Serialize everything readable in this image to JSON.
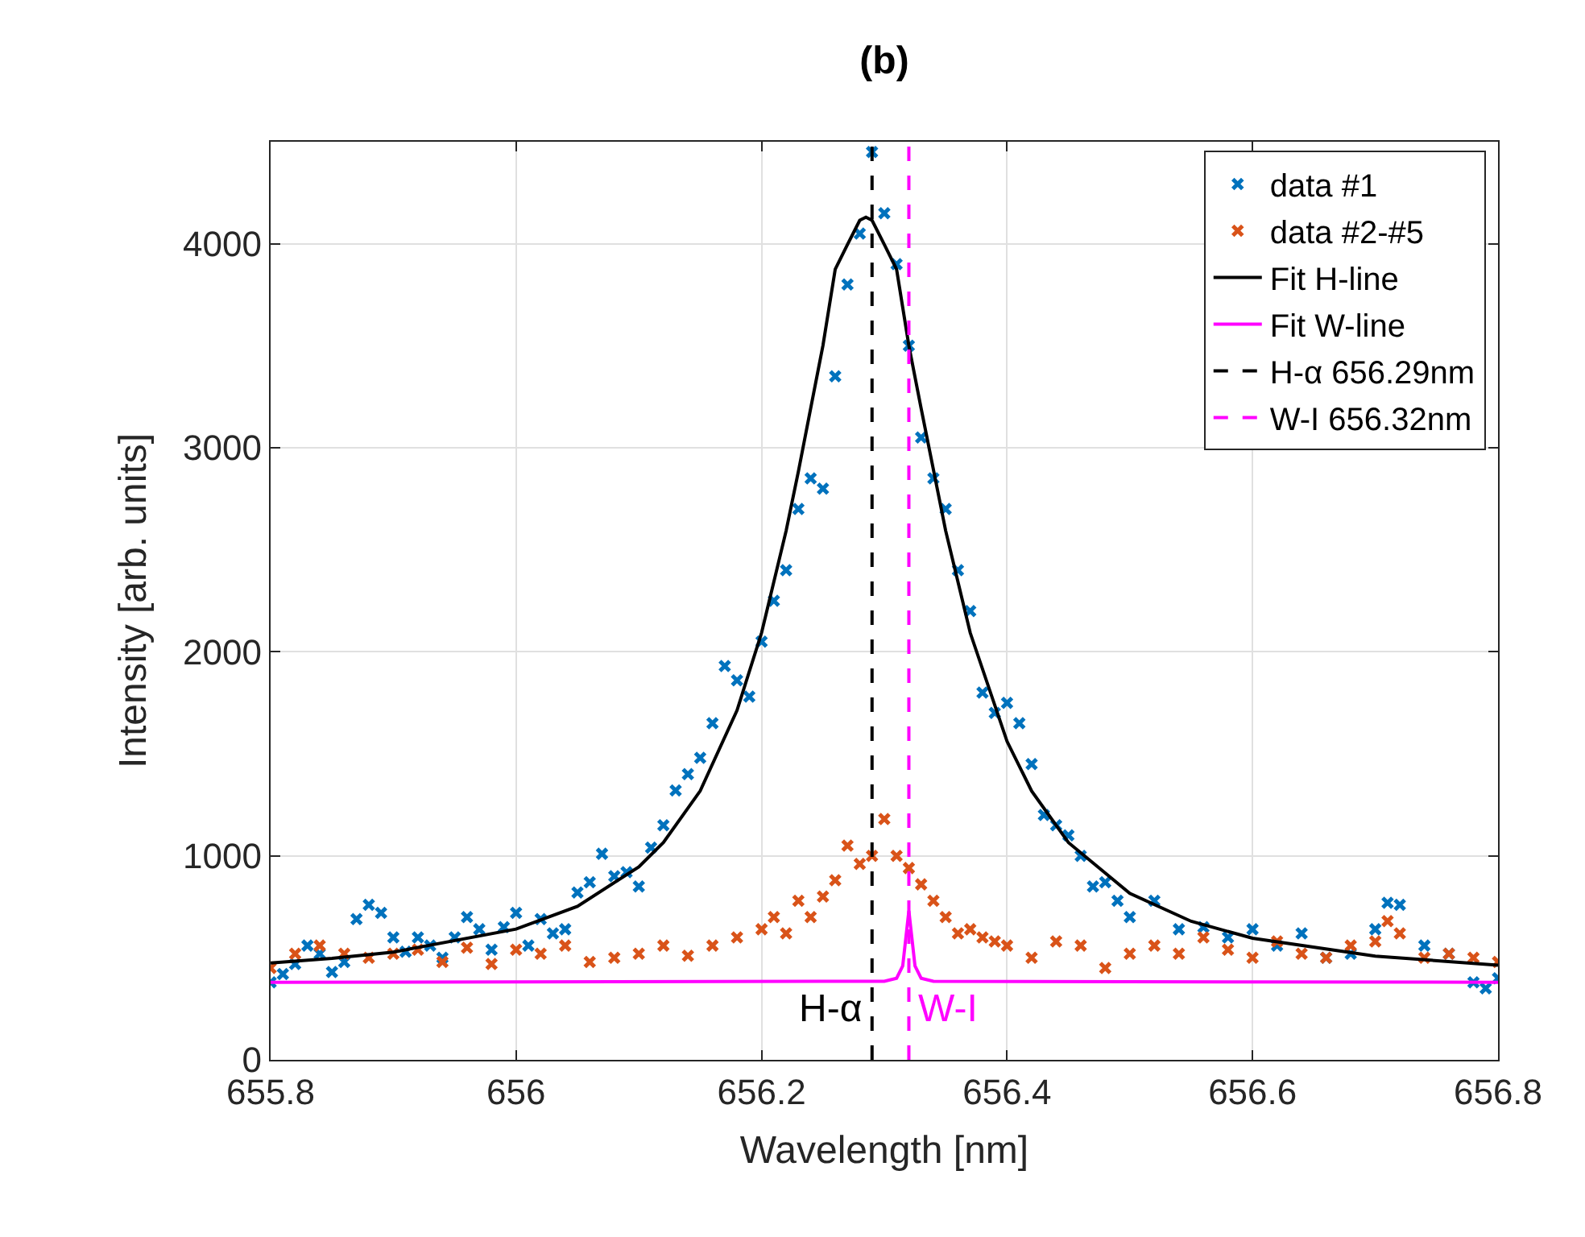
{
  "chart_data": {
    "type": "scatter",
    "title": "(b)",
    "xlabel": "Wavelength [nm]",
    "ylabel": "Intensity [arb. units]",
    "xlim": [
      655.8,
      656.8
    ],
    "xticks": [
      655.8,
      656,
      656.2,
      656.4,
      656.6,
      656.8
    ],
    "ylim": [
      0,
      4500
    ],
    "yticks": [
      0,
      1000,
      2000,
      3000,
      4000
    ],
    "grid": true,
    "legend": "top right",
    "series": [
      {
        "name": "data #1",
        "marker": "cross",
        "color": "#0072bd",
        "x": [
          655.8,
          655.81,
          655.82,
          655.83,
          655.84,
          655.85,
          655.86,
          655.87,
          655.88,
          655.89,
          655.9,
          655.91,
          655.92,
          655.93,
          655.94,
          655.95,
          655.96,
          655.97,
          655.98,
          655.99,
          656.0,
          656.01,
          656.02,
          656.03,
          656.04,
          656.05,
          656.06,
          656.07,
          656.08,
          656.09,
          656.1,
          656.11,
          656.12,
          656.13,
          656.14,
          656.15,
          656.16,
          656.17,
          656.18,
          656.19,
          656.2,
          656.21,
          656.22,
          656.23,
          656.24,
          656.25,
          656.26,
          656.27,
          656.28,
          656.29,
          656.3,
          656.31,
          656.32,
          656.33,
          656.34,
          656.35,
          656.36,
          656.37,
          656.38,
          656.39,
          656.4,
          656.41,
          656.42,
          656.43,
          656.44,
          656.45,
          656.46,
          656.47,
          656.48,
          656.49,
          656.5,
          656.52,
          656.54,
          656.56,
          656.58,
          656.6,
          656.62,
          656.64,
          656.66,
          656.68,
          656.7,
          656.71,
          656.72,
          656.74,
          656.76,
          656.78,
          656.79,
          656.8
        ],
        "values": [
          380,
          420,
          470,
          560,
          520,
          430,
          480,
          690,
          760,
          720,
          600,
          530,
          600,
          560,
          500,
          600,
          700,
          640,
          540,
          650,
          720,
          560,
          690,
          620,
          640,
          820,
          870,
          1010,
          900,
          920,
          850,
          1040,
          1150,
          1320,
          1400,
          1480,
          1650,
          1930,
          1860,
          1780,
          2050,
          2250,
          2400,
          2700,
          2850,
          2800,
          3350,
          3800,
          4050,
          4450,
          4150,
          3900,
          3500,
          3050,
          2850,
          2700,
          2400,
          2200,
          1800,
          1700,
          1750,
          1650,
          1450,
          1200,
          1150,
          1100,
          1000,
          850,
          870,
          780,
          700,
          780,
          640,
          650,
          600,
          640,
          560,
          620,
          500,
          520,
          640,
          770,
          760,
          560,
          520,
          380,
          350,
          400
        ]
      },
      {
        "name": "data #2-#5",
        "marker": "cross",
        "color": "#d95319",
        "x": [
          655.8,
          655.82,
          655.84,
          655.86,
          655.88,
          655.9,
          655.92,
          655.94,
          655.96,
          655.98,
          656.0,
          656.02,
          656.04,
          656.06,
          656.08,
          656.1,
          656.12,
          656.14,
          656.16,
          656.18,
          656.2,
          656.21,
          656.22,
          656.23,
          656.24,
          656.25,
          656.26,
          656.27,
          656.28,
          656.29,
          656.3,
          656.31,
          656.32,
          656.33,
          656.34,
          656.35,
          656.36,
          656.37,
          656.38,
          656.39,
          656.4,
          656.42,
          656.44,
          656.46,
          656.48,
          656.5,
          656.52,
          656.54,
          656.56,
          656.58,
          656.6,
          656.62,
          656.64,
          656.66,
          656.68,
          656.7,
          656.71,
          656.72,
          656.74,
          656.76,
          656.78,
          656.8
        ],
        "values": [
          450,
          520,
          560,
          520,
          500,
          520,
          540,
          480,
          550,
          470,
          540,
          520,
          560,
          480,
          500,
          520,
          560,
          510,
          560,
          600,
          640,
          700,
          620,
          780,
          700,
          800,
          880,
          1050,
          960,
          1000,
          1180,
          1000,
          940,
          860,
          780,
          700,
          620,
          640,
          600,
          580,
          560,
          500,
          580,
          560,
          450,
          520,
          560,
          520,
          600,
          540,
          500,
          580,
          520,
          500,
          560,
          580,
          680,
          620,
          500,
          520,
          500,
          480
        ]
      },
      {
        "name": "Fit H-line",
        "type": "line",
        "color": "#000000",
        "line_style": "solid",
        "marker": "none",
        "x": [
          655.8,
          655.85,
          655.9,
          656.0,
          656.05,
          656.1,
          656.12,
          656.15,
          656.18,
          656.2,
          656.22,
          656.23,
          656.24,
          656.25,
          656.26,
          656.27,
          656.28,
          656.285,
          656.29,
          656.3,
          656.31,
          656.32,
          656.33,
          656.35,
          656.37,
          656.4,
          656.42,
          656.45,
          656.5,
          656.55,
          656.6,
          656.7,
          656.8
        ],
        "values": [
          475,
          497,
          528,
          641,
          752,
          946,
          1065,
          1318,
          1713,
          2093,
          2593,
          2884,
          3193,
          3501,
          3875,
          3996,
          4115,
          4130,
          4115,
          3996,
          3875,
          3501,
          3193,
          2593,
          2093,
          1561,
          1318,
          1065,
          816,
          679,
          596,
          508,
          464
        ]
      },
      {
        "name": "Fit W-line",
        "type": "line",
        "color": "#ff00ff",
        "line_style": "solid",
        "marker": "none",
        "x": [
          655.8,
          656.3,
          656.31,
          656.315,
          656.32,
          656.325,
          656.33,
          656.34,
          656.8
        ],
        "values": [
          380,
          385,
          400,
          460,
          730,
          460,
          400,
          385,
          380
        ]
      },
      {
        "name": "H-α 656.29nm",
        "type": "line",
        "color": "#000000",
        "line_style": "dashed",
        "marker": "none",
        "x": [
          656.29,
          656.29
        ],
        "values": [
          0,
          4500
        ]
      },
      {
        "name": "W-I 656.32nm",
        "type": "line",
        "color": "#ff00ff",
        "line_style": "dashed",
        "marker": "none",
        "x": [
          656.32,
          656.32
        ],
        "values": [
          0,
          4500
        ]
      }
    ],
    "annotations": [
      {
        "text": "H-α",
        "x": 656.29,
        "y": 250
      },
      {
        "text": "W-I",
        "x": 656.32,
        "y": 250
      }
    ]
  }
}
